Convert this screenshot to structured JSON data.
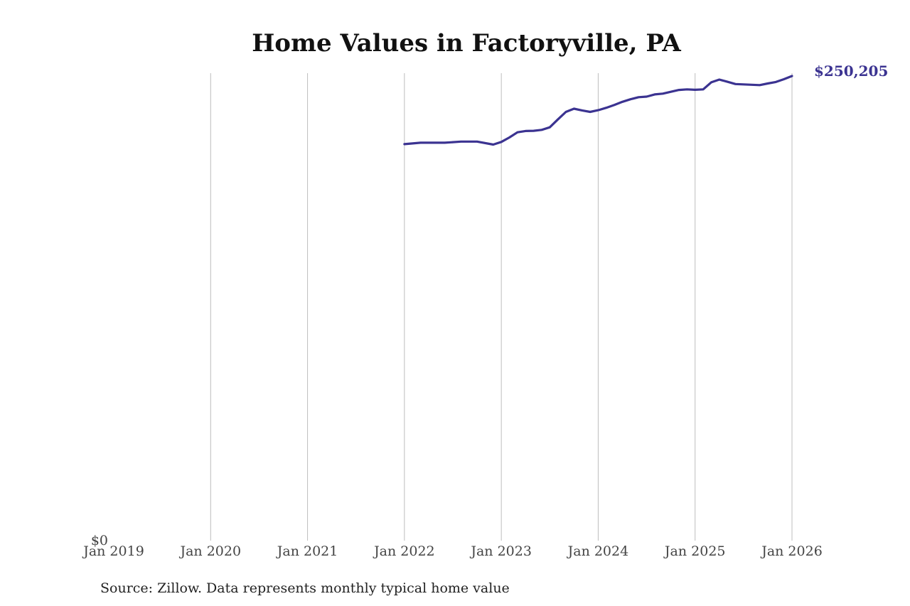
{
  "chart_data": {
    "type": "line",
    "title": "Home Values in Factoryville, PA",
    "source": "Source: Zillow. Data represents monthly typical home value",
    "x_ticks": [
      "Jan 2019",
      "Jan 2020",
      "Jan 2021",
      "Jan 2022",
      "Jan 2023",
      "Jan 2024",
      "Jan 2025",
      "Jan 2026"
    ],
    "xlim": [
      "2019-01",
      "2026-01"
    ],
    "y_tick_label": "$0",
    "ylim": [
      0,
      250205
    ],
    "grid": "vertical",
    "line_color": "#3b3391",
    "end_label": "$250,205",
    "series": [
      {
        "x": [
          "2022-01",
          "2022-03",
          "2022-06",
          "2022-08",
          "2022-10",
          "2022-12",
          "2023-01",
          "2023-02",
          "2023-03",
          "2023-04",
          "2023-05",
          "2023-06",
          "2023-07",
          "2023-08",
          "2023-09",
          "2023-10",
          "2023-11",
          "2023-12",
          "2024-01",
          "2024-02",
          "2024-03",
          "2024-04",
          "2024-05",
          "2024-06",
          "2024-07",
          "2024-08",
          "2024-09",
          "2024-10",
          "2024-11",
          "2024-12",
          "2025-01",
          "2025-02",
          "2025-03",
          "2025-04",
          "2025-05",
          "2025-06",
          "2025-07",
          "2025-08",
          "2025-09",
          "2025-10",
          "2025-11",
          "2025-12",
          "2026-01"
        ],
        "values": [
          213500,
          214300,
          214300,
          214900,
          214900,
          213300,
          214700,
          217100,
          219900,
          220600,
          220700,
          221200,
          222600,
          226800,
          230900,
          232600,
          231700,
          230900,
          231800,
          233100,
          234600,
          236300,
          237700,
          238800,
          239100,
          240300,
          240700,
          241700,
          242700,
          243000,
          242800,
          243000,
          246800,
          248300,
          247100,
          245900,
          245700,
          245500,
          245300,
          246200,
          247000,
          248500,
          250205
        ]
      }
    ]
  }
}
